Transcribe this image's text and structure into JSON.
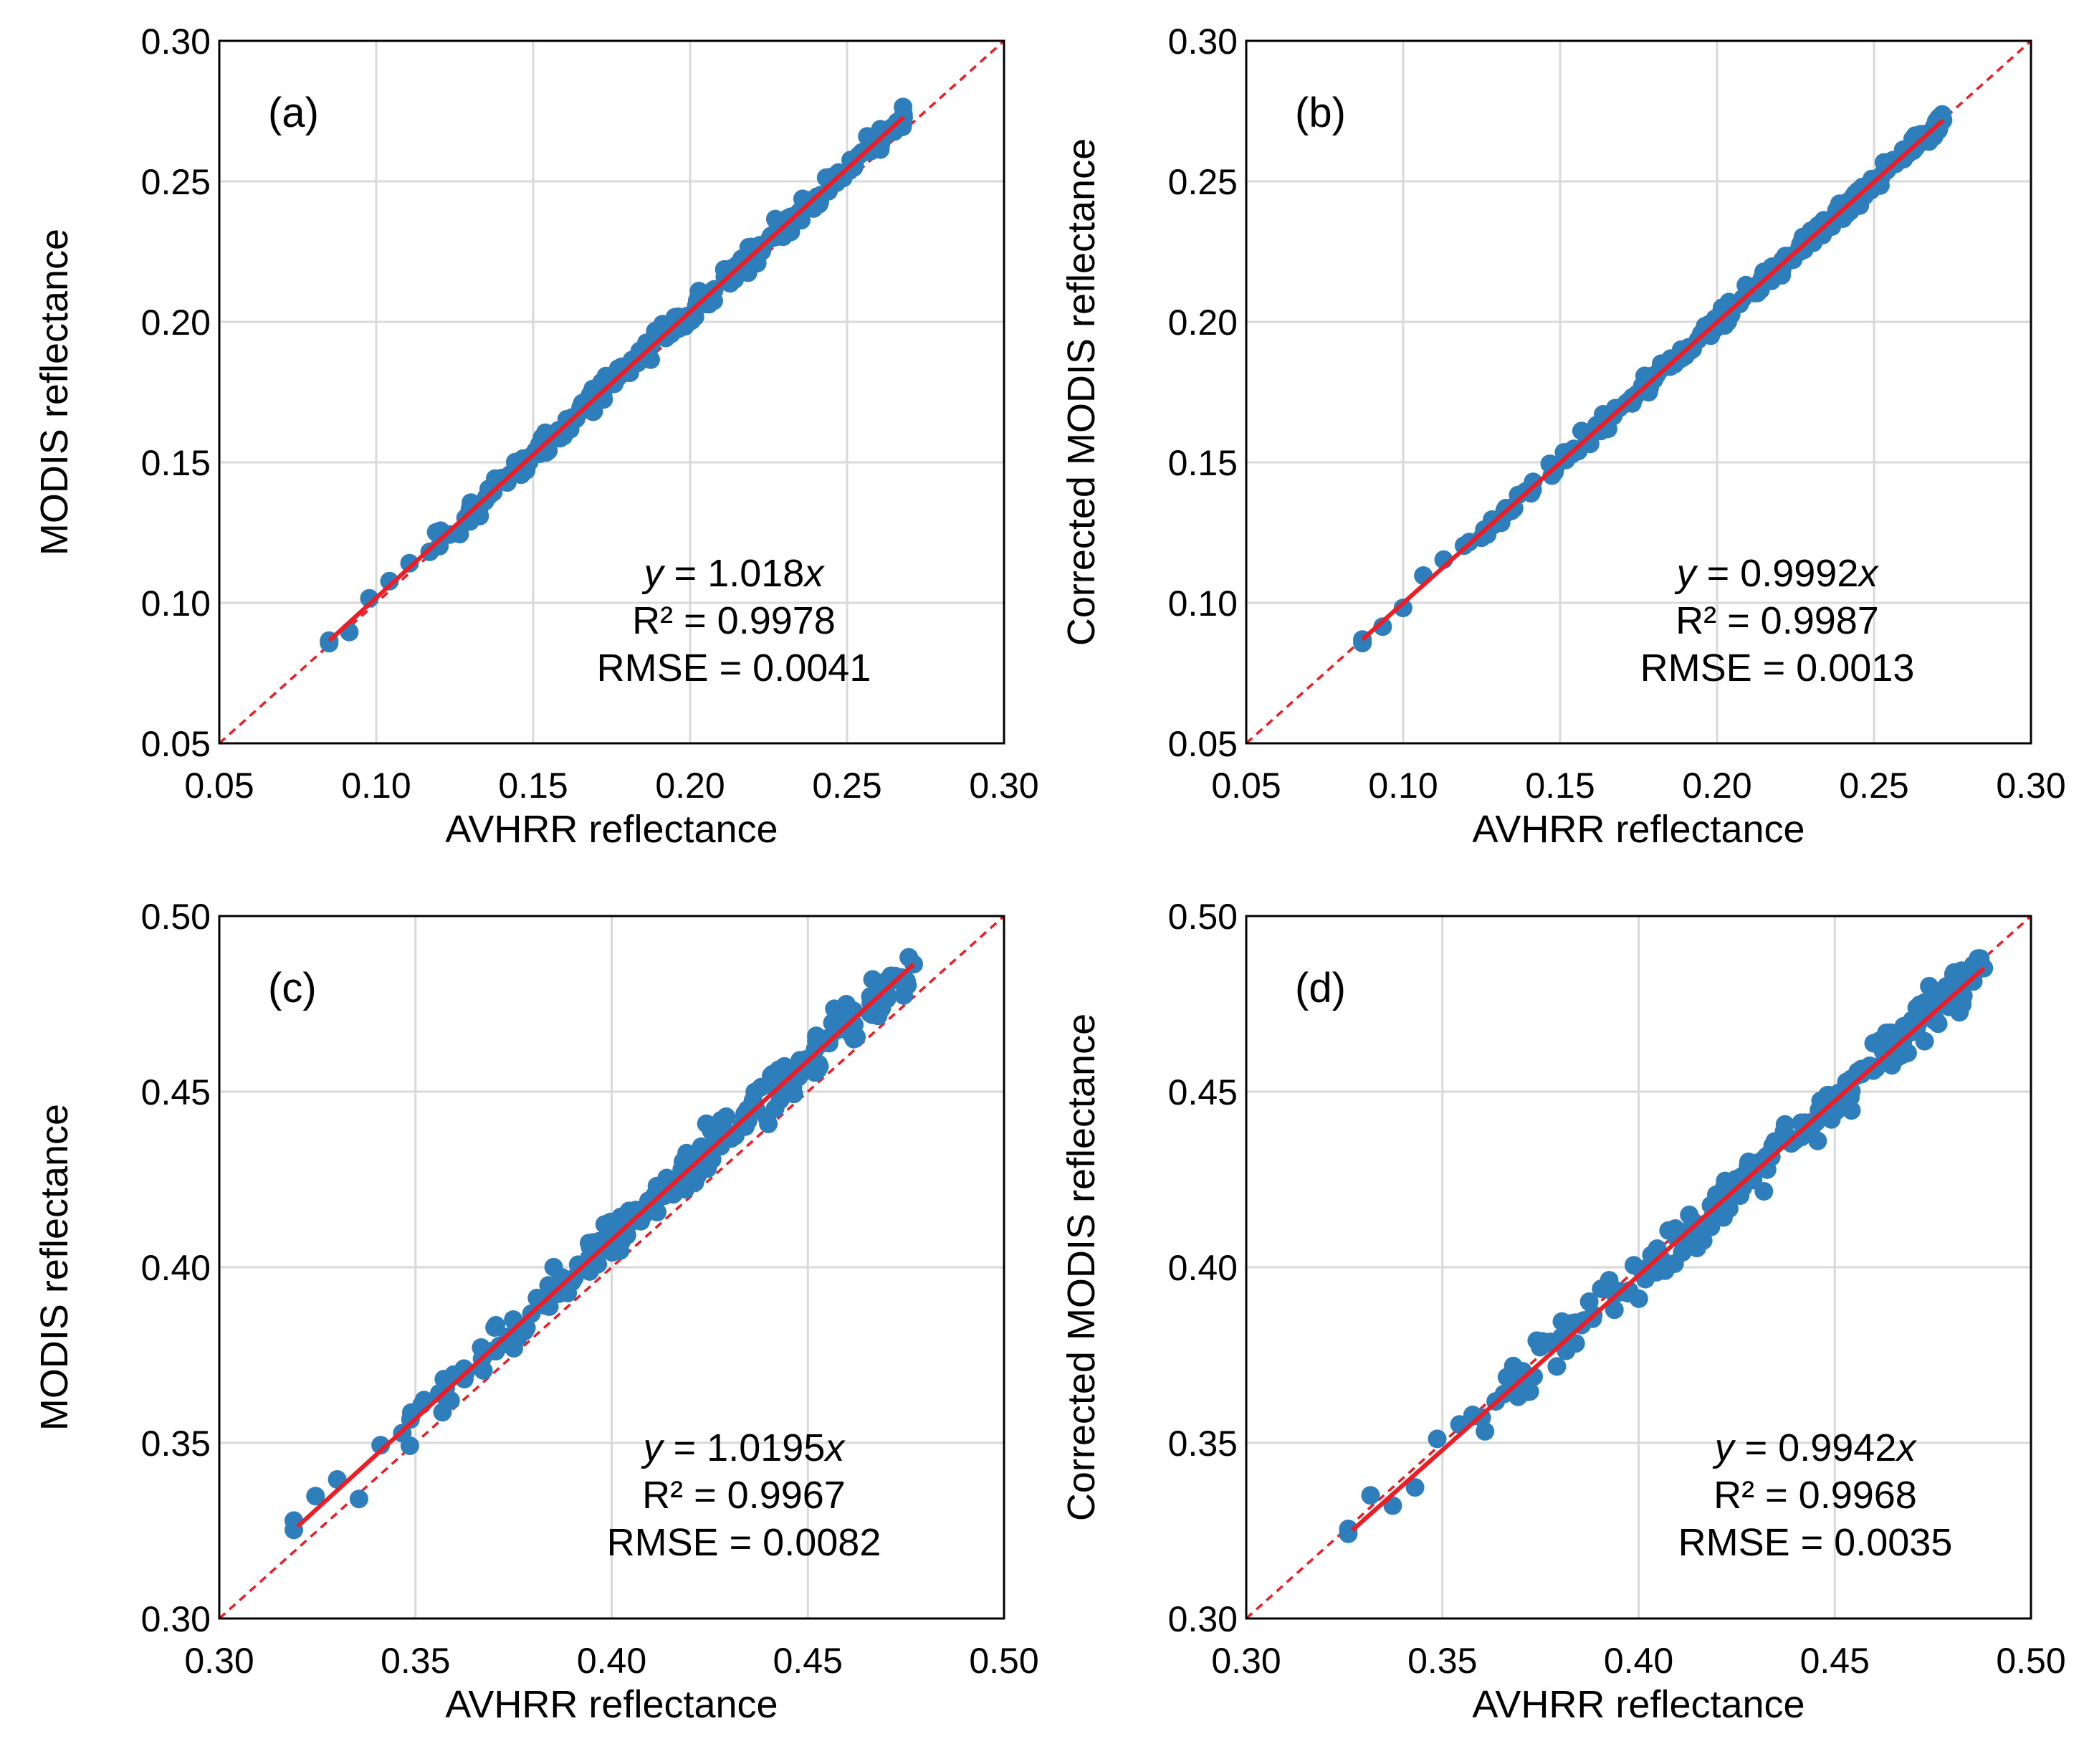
{
  "figure_title": "",
  "chart_data": [
    {
      "type": "scatter",
      "panel_label": "(a)",
      "title": "",
      "xlabel": "AVHRR reflectance",
      "ylabel": "MODIS reflectance",
      "xlim": [
        0.05,
        0.3
      ],
      "ylim": [
        0.05,
        0.3
      ],
      "ticks": [
        0.05,
        0.1,
        0.15,
        0.2,
        0.25,
        0.3
      ],
      "tick_labels": [
        "0.05",
        "0.10",
        "0.15",
        "0.20",
        "0.25",
        "0.30"
      ],
      "grid": true,
      "fit_slope": 1.018,
      "fit_range": [
        0.085,
        0.268
      ],
      "stats": {
        "eq_var": "y",
        "eq_rest": " = 1.018",
        "eq_x": "x",
        "r2": "R² = 0.9978",
        "rmse": "RMSE = 0.0041"
      },
      "sample_range": [
        0.085,
        0.268
      ],
      "sample_count": 260,
      "scatter_noise": 0.0022,
      "series": [
        {
          "name": "samples",
          "color": "#2e7ebc"
        },
        {
          "name": "fit",
          "color": "#ee1c25"
        },
        {
          "name": "1:1 line",
          "color": "#ee1c25",
          "dashed": true
        }
      ]
    },
    {
      "type": "scatter",
      "panel_label": "(b)",
      "title": "",
      "xlabel": "AVHRR reflectance",
      "ylabel": "Corrected MODIS reflectance",
      "xlim": [
        0.05,
        0.3
      ],
      "ylim": [
        0.05,
        0.3
      ],
      "ticks": [
        0.05,
        0.1,
        0.15,
        0.2,
        0.25,
        0.3
      ],
      "tick_labels": [
        "0.05",
        "0.10",
        "0.15",
        "0.20",
        "0.25",
        "0.30"
      ],
      "grid": true,
      "fit_slope": 0.9992,
      "fit_range": [
        0.087,
        0.272
      ],
      "stats": {
        "eq_var": "y",
        "eq_rest": " = 0.9992",
        "eq_x": "x",
        "r2": "R² = 0.9987",
        "rmse": "RMSE = 0.0013"
      },
      "sample_range": [
        0.087,
        0.272
      ],
      "sample_count": 260,
      "scatter_noise": 0.0016,
      "series": [
        {
          "name": "samples",
          "color": "#2e7ebc"
        },
        {
          "name": "fit",
          "color": "#ee1c25"
        },
        {
          "name": "1:1 line",
          "color": "#ee1c25",
          "dashed": true
        }
      ]
    },
    {
      "type": "scatter",
      "panel_label": "(c)",
      "title": "",
      "xlabel": "AVHRR reflectance",
      "ylabel": "MODIS reflectance",
      "xlim": [
        0.3,
        0.5
      ],
      "ylim": [
        0.3,
        0.5
      ],
      "ticks": [
        0.3,
        0.35,
        0.4,
        0.45,
        0.5
      ],
      "tick_labels": [
        "0.30",
        "0.35",
        "0.40",
        "0.45",
        "0.50"
      ],
      "grid": true,
      "fit_slope": 1.0195,
      "fit_range": [
        0.32,
        0.477
      ],
      "stats": {
        "eq_var": "y",
        "eq_rest": " = 1.0195",
        "eq_x": "x",
        "r2": "R² = 0.9967",
        "rmse": "RMSE = 0.0082"
      },
      "sample_range": [
        0.319,
        0.477
      ],
      "sample_count": 240,
      "scatter_noise": 0.0032,
      "series": [
        {
          "name": "samples",
          "color": "#2e7ebc"
        },
        {
          "name": "fit",
          "color": "#ee1c25"
        },
        {
          "name": "1:1 line",
          "color": "#ee1c25",
          "dashed": true
        }
      ]
    },
    {
      "type": "scatter",
      "panel_label": "(d)",
      "title": "",
      "xlabel": "AVHRR reflectance",
      "ylabel": "Corrected MODIS reflectance",
      "xlim": [
        0.3,
        0.5
      ],
      "ylim": [
        0.3,
        0.5
      ],
      "ticks": [
        0.3,
        0.35,
        0.4,
        0.45,
        0.5
      ],
      "tick_labels": [
        "0.30",
        "0.35",
        "0.40",
        "0.45",
        "0.50"
      ],
      "grid": true,
      "fit_slope": 0.9942,
      "fit_range": [
        0.327,
        0.488
      ],
      "stats": {
        "eq_var": "y",
        "eq_rest": " = 0.9942",
        "eq_x": "x",
        "r2": "R² = 0.9968",
        "rmse": "RMSE = 0.0035"
      },
      "sample_range": [
        0.326,
        0.488
      ],
      "sample_count": 240,
      "scatter_noise": 0.0032,
      "series": [
        {
          "name": "samples",
          "color": "#2e7ebc"
        },
        {
          "name": "fit",
          "color": "#ee1c25"
        },
        {
          "name": "1:1 line",
          "color": "#ee1c25",
          "dashed": true
        }
      ]
    }
  ]
}
